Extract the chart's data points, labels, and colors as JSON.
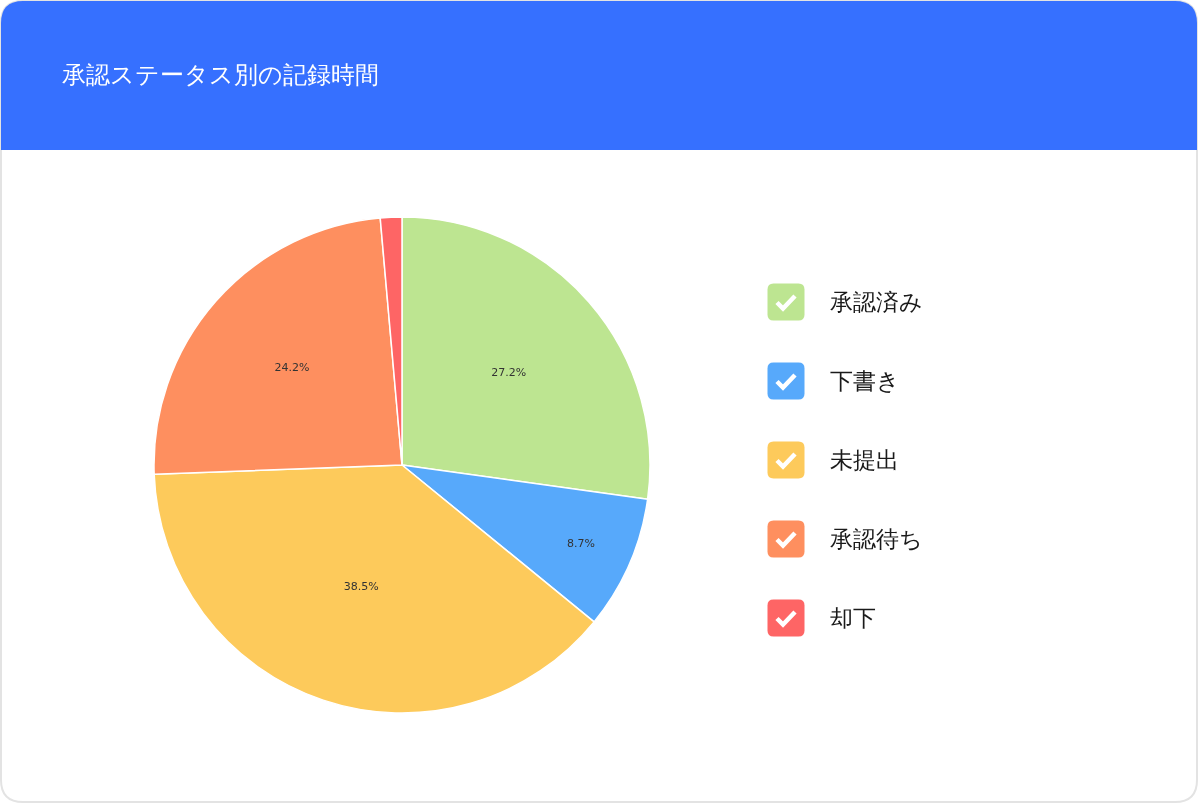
{
  "chart_data": {
    "type": "pie",
    "title": "承認ステータス別の記録時間",
    "categories": [
      "承認済み",
      "下書き",
      "未提出",
      "承認待ち",
      "却下"
    ],
    "values": [
      27.2,
      8.7,
      38.5,
      24.2,
      1.4
    ],
    "colors": [
      "#bde591",
      "#57a9fb",
      "#fdca5b",
      "#fe8f5f",
      "#fe6565"
    ],
    "value_labels": [
      "27.2%",
      "8.7%",
      "38.5%",
      "24.2%",
      null
    ],
    "legend": "right"
  }
}
